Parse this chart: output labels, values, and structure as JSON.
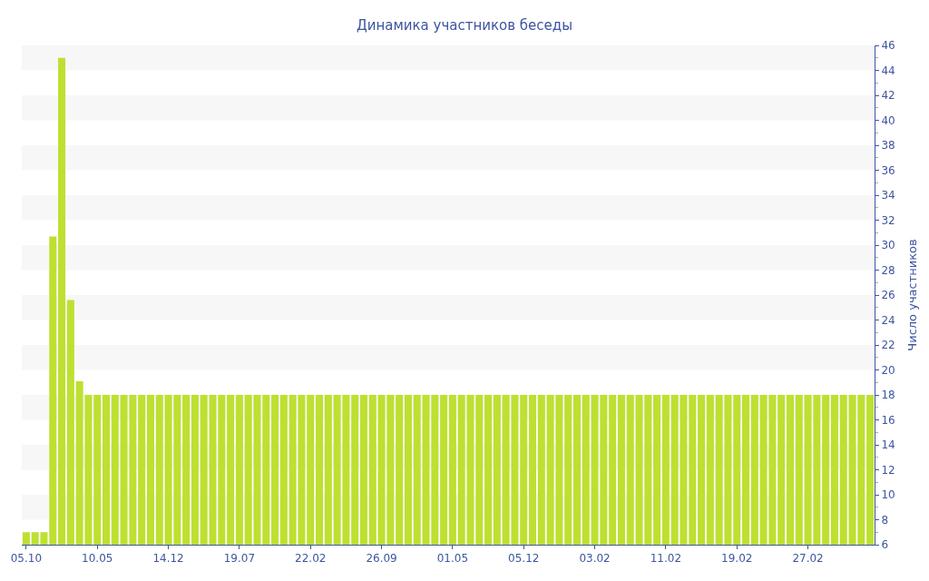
{
  "chart_data": {
    "type": "bar",
    "title": "Динамика участников беседы",
    "ylabel": "Число участников",
    "categories": [
      "05.10",
      null,
      null,
      null,
      null,
      null,
      null,
      null,
      "10.05",
      null,
      null,
      null,
      null,
      null,
      null,
      null,
      "14.12",
      null,
      null,
      null,
      null,
      null,
      null,
      null,
      "19.07",
      null,
      null,
      null,
      null,
      null,
      null,
      null,
      "22.02",
      null,
      null,
      null,
      null,
      null,
      null,
      null,
      "26.09",
      null,
      null,
      null,
      null,
      null,
      null,
      null,
      "01.05",
      null,
      null,
      null,
      null,
      null,
      null,
      null,
      "05.12",
      null,
      null,
      null,
      null,
      null,
      null,
      null,
      "03.02",
      null,
      null,
      null,
      null,
      null,
      null,
      null,
      "11.02",
      null,
      null,
      null,
      null,
      null,
      null,
      null,
      "19.02",
      null,
      null,
      null,
      null,
      null,
      null,
      null,
      "27.02",
      null,
      null,
      null,
      null,
      null,
      null,
      null
    ],
    "values": [
      7,
      7,
      7,
      30.7,
      45,
      25.6,
      19.1,
      18,
      18,
      18,
      18,
      18,
      18,
      18,
      18,
      18,
      18,
      18,
      18,
      18,
      18,
      18,
      18,
      18,
      18,
      18,
      18,
      18,
      18,
      18,
      18,
      18,
      18,
      18,
      18,
      18,
      18,
      18,
      18,
      18,
      18,
      18,
      18,
      18,
      18,
      18,
      18,
      18,
      18,
      18,
      18,
      18,
      18,
      18,
      18,
      18,
      18,
      18,
      18,
      18,
      18,
      18,
      18,
      18,
      18,
      18,
      18,
      18,
      18,
      18,
      18,
      18,
      18,
      18,
      18,
      18,
      18,
      18,
      18,
      18,
      18,
      18,
      18,
      18,
      18,
      18,
      18,
      18,
      18,
      18,
      18,
      18,
      18,
      18,
      18,
      18
    ],
    "color": "#bde031",
    "ylim": [
      6,
      46
    ],
    "yticks": [
      6,
      8,
      10,
      12,
      14,
      16,
      18,
      20,
      22,
      24,
      26,
      28,
      30,
      32,
      34,
      36,
      38,
      40,
      42,
      44,
      46
    ],
    "bands": [
      {
        "axis": "y",
        "from": 8,
        "to": 10,
        "color": "#f7f7f7"
      },
      {
        "axis": "y",
        "from": 12,
        "to": 14,
        "color": "#f7f7f7"
      },
      {
        "axis": "y",
        "from": 16,
        "to": 18,
        "color": "#f7f7f7"
      },
      {
        "axis": "y",
        "from": 20,
        "to": 22,
        "color": "#f7f7f7"
      },
      {
        "axis": "y",
        "from": 24,
        "to": 26,
        "color": "#f7f7f7"
      },
      {
        "axis": "y",
        "from": 28,
        "to": 30,
        "color": "#f7f7f7"
      },
      {
        "axis": "y",
        "from": 32,
        "to": 34,
        "color": "#f7f7f7"
      },
      {
        "axis": "y",
        "from": 36,
        "to": 38,
        "color": "#f7f7f7"
      },
      {
        "axis": "y",
        "from": 40,
        "to": 42,
        "color": "#f7f7f7"
      },
      {
        "axis": "y",
        "from": 44,
        "to": 46,
        "color": "#f7f7f7"
      }
    ]
  }
}
